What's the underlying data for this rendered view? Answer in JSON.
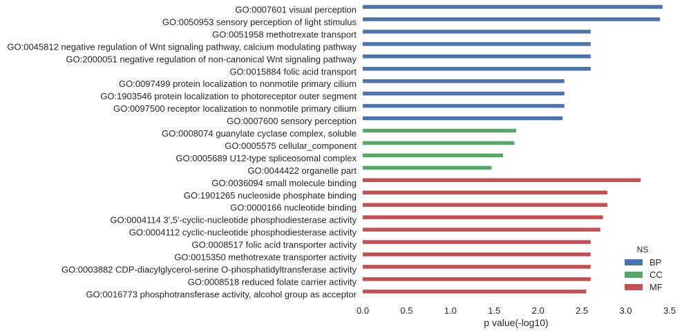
{
  "chart_data": {
    "type": "bar",
    "orientation": "horizontal",
    "title": "",
    "xlabel": "p value(-log10)",
    "ylabel": "",
    "xlim": [
      0,
      3.5
    ],
    "xticks": [
      "0.0",
      "0.5",
      "1.0",
      "1.5",
      "2.0",
      "2.5",
      "3.0",
      "3.5"
    ],
    "grid": false,
    "legend": {
      "title": "NS",
      "placement": "bottom-right",
      "entries": [
        {
          "key": "BP",
          "label": "BP",
          "color": "#4c72b0"
        },
        {
          "key": "CC",
          "label": "CC",
          "color": "#55a868"
        },
        {
          "key": "MF",
          "label": "MF",
          "color": "#c44e52"
        }
      ]
    },
    "categories": [
      "GO:0007601 visual perception",
      "GO:0050953 sensory perception of light stimulus",
      "GO:0051958 methotrexate transport",
      "GO:0045812 negative regulation of Wnt signaling pathway, calcium modulating pathway",
      "GO:2000051 negative regulation of non-canonical Wnt signaling pathway",
      "GO:0015884 folic acid transport",
      "GO:0097499 protein localization to nonmotile primary cilium",
      "GO:1903546 protein localization to photoreceptor outer segment",
      "GO:0097500 receptor localization to nonmotile primary cilium",
      "GO:0007600 sensory perception",
      "GO:0008074 guanylate cyclase complex, soluble",
      "GO:0005575 cellular_component",
      "GO:0005689 U12-type spliceosomal complex",
      "GO:0044422 organelle part",
      "GO:0036094 small molecule binding",
      "GO:1901265 nucleoside phosphate binding",
      "GO:0000166 nucleotide binding",
      "GO:0004114 3',5'-cyclic-nucleotide phosphodiesterase activity",
      "GO:0004112 cyclic-nucleotide phosphodiesterase activity",
      "GO:0008517 folic acid transporter activity",
      "GO:0015350 methotrexate transporter activity",
      "GO:0003882 CDP-diacylglycerol-serine O-phosphatidyltransferase activity",
      "GO:0008518 reduced folate carrier activity",
      "GO:0016773 phosphotransferase activity, alcohol group as acceptor"
    ],
    "values": [
      3.42,
      3.39,
      2.6,
      2.6,
      2.6,
      2.6,
      2.3,
      2.3,
      2.3,
      2.28,
      1.75,
      1.73,
      1.6,
      1.47,
      3.17,
      2.79,
      2.79,
      2.74,
      2.71,
      2.6,
      2.6,
      2.6,
      2.6,
      2.55
    ],
    "ns": [
      "BP",
      "BP",
      "BP",
      "BP",
      "BP",
      "BP",
      "BP",
      "BP",
      "BP",
      "BP",
      "CC",
      "CC",
      "CC",
      "CC",
      "MF",
      "MF",
      "MF",
      "MF",
      "MF",
      "MF",
      "MF",
      "MF",
      "MF",
      "MF"
    ]
  }
}
